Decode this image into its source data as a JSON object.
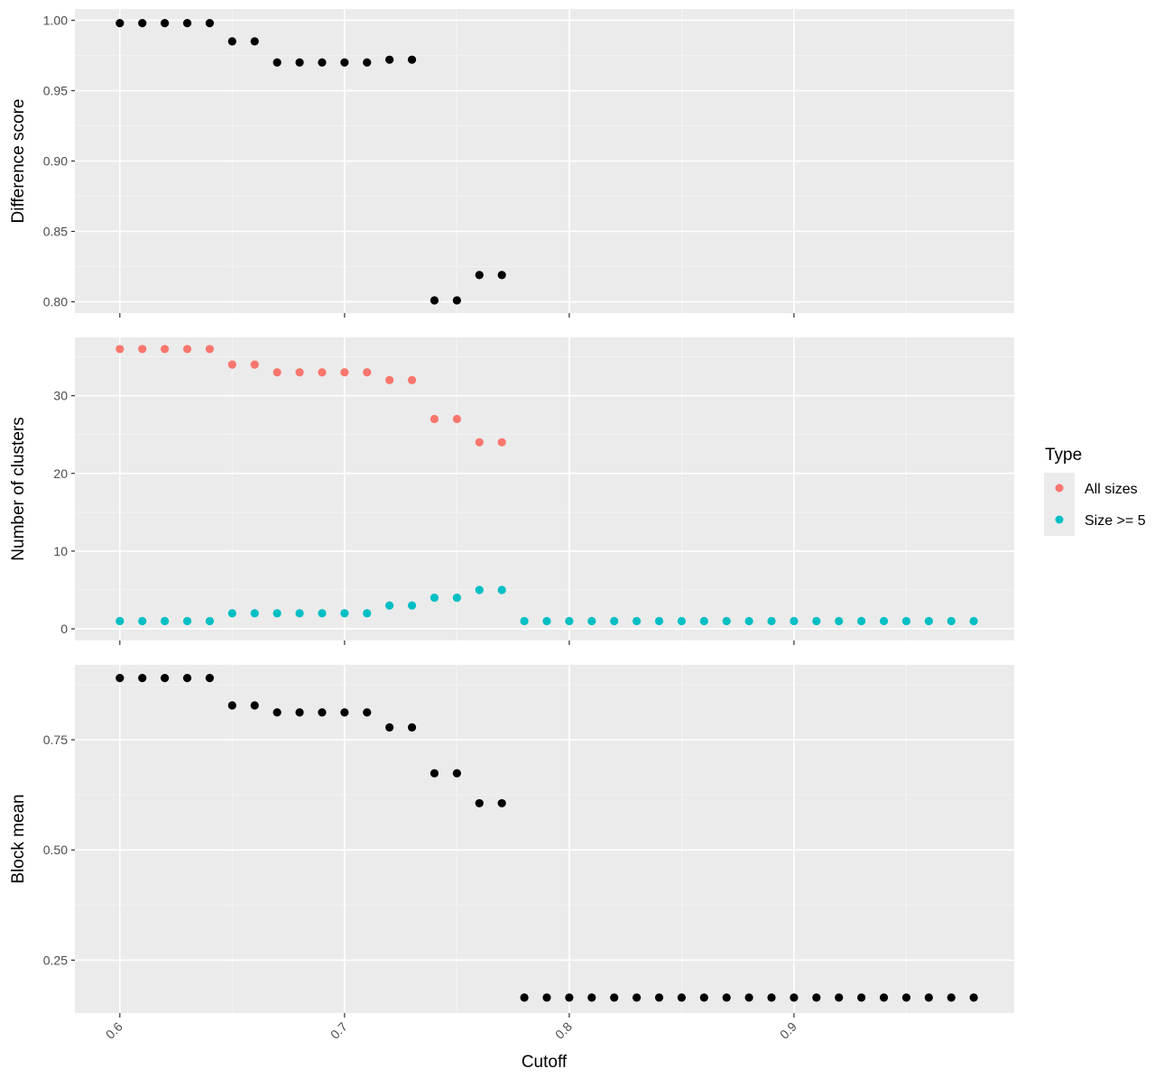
{
  "chart_data": {
    "type": "scatter",
    "xlabel": "Cutoff",
    "x_ticks": [
      "0.6",
      "0.7",
      "0.8",
      "0.9"
    ],
    "x_tick_values": [
      0.6,
      0.7,
      0.8,
      0.9
    ],
    "xlim": [
      0.58,
      0.998
    ],
    "grid": true,
    "legend": {
      "title": "Type",
      "position": "right",
      "entries": [
        {
          "label": "All sizes",
          "color": "#F8766D"
        },
        {
          "label": "Size >= 5",
          "color": "#00BFC4"
        }
      ]
    },
    "panels": [
      {
        "ylabel": "Difference score",
        "ylim": [
          0.792,
          1.008
        ],
        "y_ticks": [
          "0.80",
          "0.85",
          "0.90",
          "0.95",
          "1.00"
        ],
        "y_tick_values": [
          0.8,
          0.85,
          0.9,
          0.95,
          1.0
        ],
        "series": [
          {
            "color": "#000000",
            "x": [
              0.6,
              0.61,
              0.62,
              0.63,
              0.64,
              0.65,
              0.66,
              0.67,
              0.68,
              0.69,
              0.7,
              0.71,
              0.72,
              0.73,
              0.74,
              0.75,
              0.76,
              0.77
            ],
            "y": [
              0.998,
              0.998,
              0.998,
              0.998,
              0.998,
              0.985,
              0.985,
              0.97,
              0.97,
              0.97,
              0.97,
              0.97,
              0.972,
              0.972,
              0.801,
              0.801,
              0.819,
              0.819
            ]
          }
        ]
      },
      {
        "ylabel": "Number of clusters",
        "ylim": [
          -1.5,
          37.5
        ],
        "y_ticks": [
          "0",
          "10",
          "20",
          "30"
        ],
        "y_tick_values": [
          0,
          10,
          20,
          30
        ],
        "series": [
          {
            "name": "All sizes",
            "color": "#F8766D",
            "x": [
              0.6,
              0.61,
              0.62,
              0.63,
              0.64,
              0.65,
              0.66,
              0.67,
              0.68,
              0.69,
              0.7,
              0.71,
              0.72,
              0.73,
              0.74,
              0.75,
              0.76,
              0.77
            ],
            "y": [
              36,
              36,
              36,
              36,
              36,
              34,
              34,
              33,
              33,
              33,
              33,
              33,
              32,
              32,
              27,
              27,
              24,
              24
            ]
          },
          {
            "name": "Size >= 5",
            "color": "#00BFC4",
            "x": [
              0.6,
              0.61,
              0.62,
              0.63,
              0.64,
              0.65,
              0.66,
              0.67,
              0.68,
              0.69,
              0.7,
              0.71,
              0.72,
              0.73,
              0.74,
              0.75,
              0.76,
              0.77,
              0.78,
              0.79,
              0.8,
              0.81,
              0.82,
              0.83,
              0.84,
              0.85,
              0.86,
              0.87,
              0.88,
              0.89,
              0.9,
              0.91,
              0.92,
              0.93,
              0.94,
              0.95,
              0.96,
              0.97,
              0.98
            ],
            "y": [
              1,
              1,
              1,
              1,
              1,
              2,
              2,
              2,
              2,
              2,
              2,
              2,
              3,
              3,
              4,
              4,
              5,
              5,
              1,
              1,
              1,
              1,
              1,
              1,
              1,
              1,
              1,
              1,
              1,
              1,
              1,
              1,
              1,
              1,
              1,
              1,
              1,
              1,
              1
            ]
          }
        ]
      },
      {
        "ylabel": "Block mean",
        "ylim": [
          0.13,
          0.92
        ],
        "y_ticks": [
          "0.25",
          "0.50",
          "0.75"
        ],
        "y_tick_values": [
          0.25,
          0.5,
          0.75
        ],
        "series": [
          {
            "color": "#000000",
            "x": [
              0.6,
              0.61,
              0.62,
              0.63,
              0.64,
              0.65,
              0.66,
              0.67,
              0.68,
              0.69,
              0.7,
              0.71,
              0.72,
              0.73,
              0.74,
              0.75,
              0.76,
              0.77,
              0.78,
              0.79,
              0.8,
              0.81,
              0.82,
              0.83,
              0.84,
              0.85,
              0.86,
              0.87,
              0.88,
              0.89,
              0.9,
              0.91,
              0.92,
              0.93,
              0.94,
              0.95,
              0.96,
              0.97,
              0.98
            ],
            "y": [
              0.89,
              0.89,
              0.89,
              0.89,
              0.89,
              0.828,
              0.828,
              0.812,
              0.812,
              0.812,
              0.812,
              0.812,
              0.778,
              0.778,
              0.674,
              0.674,
              0.606,
              0.606,
              0.165,
              0.165,
              0.165,
              0.165,
              0.165,
              0.165,
              0.165,
              0.165,
              0.165,
              0.165,
              0.165,
              0.165,
              0.165,
              0.165,
              0.165,
              0.165,
              0.165,
              0.165,
              0.165,
              0.165,
              0.165
            ]
          }
        ]
      }
    ]
  }
}
